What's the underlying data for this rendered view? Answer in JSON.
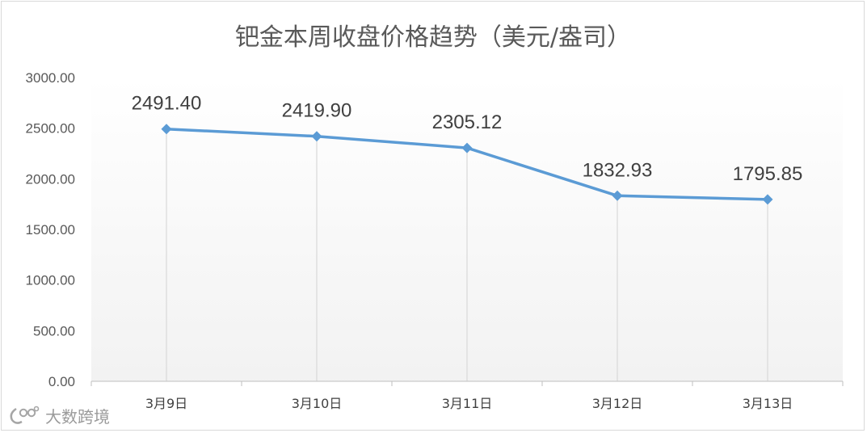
{
  "chart_data": {
    "type": "line",
    "title": "钯金本周收盘价格趋势（美元/盎司）",
    "categories": [
      "3月9日",
      "3月10日",
      "3月11日",
      "3月12日",
      "3月13日"
    ],
    "values": [
      2491.4,
      2419.9,
      2305.12,
      1832.93,
      1795.85
    ],
    "data_labels": [
      "2491.40",
      "2419.90",
      "2305.12",
      "1832.93",
      "1795.85"
    ],
    "ylim": [
      0,
      3000
    ],
    "yticks": [
      "0.00",
      "500.00",
      "1000.00",
      "1500.00",
      "2000.00",
      "2500.00",
      "3000.00"
    ],
    "xlabel": "",
    "ylabel": "",
    "grid": false,
    "drop_lines": true,
    "marker": "diamond",
    "colors": {
      "line": "#5b9bd5",
      "drop_line": "#d9d9d9",
      "axis": "#bfbfbf"
    }
  },
  "watermark": {
    "text": "大数跨境",
    "icon": "logo-icon"
  }
}
